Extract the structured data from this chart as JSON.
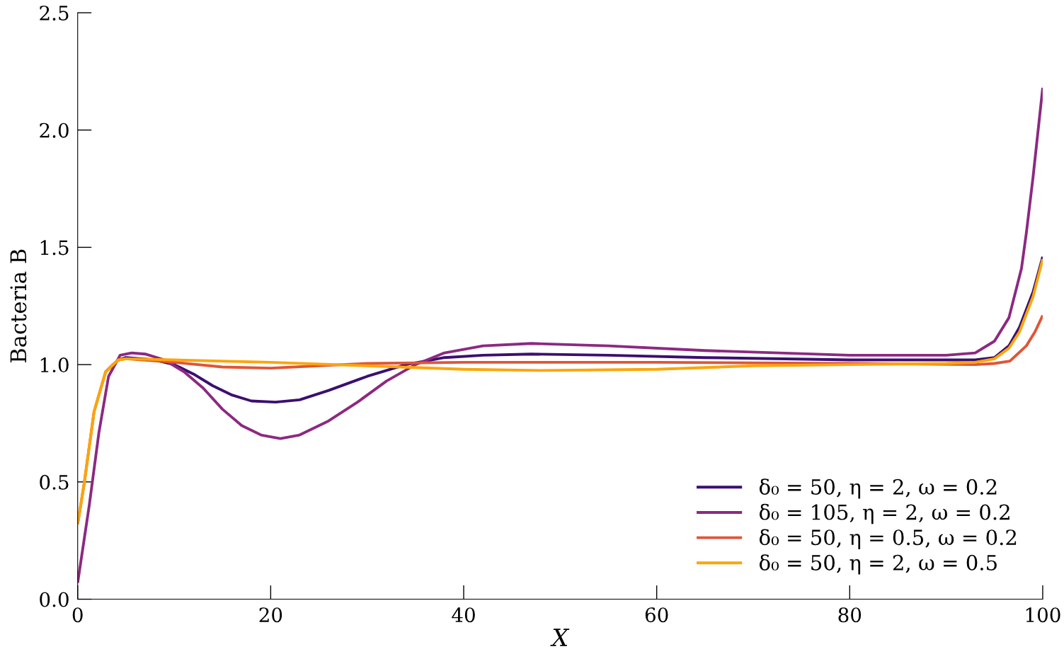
{
  "chart_data": {
    "type": "line",
    "xlabel": "X",
    "ylabel": "Bacteria B",
    "xlim": [
      0,
      100
    ],
    "ylim": [
      0,
      2.5
    ],
    "xticks": [
      0,
      20,
      40,
      60,
      80,
      100
    ],
    "yticks": [
      {
        "value": 0,
        "label": "0.0"
      },
      {
        "value": 0.5,
        "label": "0.5"
      },
      {
        "value": 1,
        "label": "1.0"
      },
      {
        "value": 1.5,
        "label": "1.5"
      },
      {
        "value": 2,
        "label": "2.0"
      },
      {
        "value": 2.5,
        "label": "2.5"
      }
    ],
    "grid": false,
    "legend": "bottom right",
    "marker": "none",
    "line_style": "solid",
    "series": [
      {
        "name": "δ₀ = 50, η = 2, ω = 0.2",
        "color": "#3b0f70",
        "x": [
          2.9,
          4.2,
          5,
          8,
          10,
          12,
          14,
          16,
          18,
          20.5,
          23,
          26,
          30,
          34,
          38,
          42,
          47,
          55,
          65,
          80,
          90,
          93,
          95,
          96.5,
          97.6,
          99,
          100
        ],
        "values": [
          0.97,
          1.02,
          1.03,
          1.02,
          1.0,
          0.96,
          0.91,
          0.87,
          0.845,
          0.84,
          0.85,
          0.89,
          0.95,
          1.0,
          1.03,
          1.04,
          1.045,
          1.04,
          1.03,
          1.02,
          1.02,
          1.02,
          1.03,
          1.08,
          1.16,
          1.31,
          1.46
        ]
      },
      {
        "name": "δ₀ = 105, η = 2, ω = 0.2",
        "color": "#8c2981",
        "x": [
          0,
          1.2,
          2.2,
          3.2,
          4.4,
          5.6,
          7,
          9,
          11,
          13,
          15,
          17,
          19,
          21,
          23,
          26,
          29,
          32,
          35,
          38,
          42,
          47,
          55,
          65,
          80,
          90,
          93,
          95,
          96.5,
          97.8,
          98.3,
          99,
          100
        ],
        "values": [
          0.07,
          0.4,
          0.71,
          0.95,
          1.04,
          1.05,
          1.045,
          1.02,
          0.97,
          0.9,
          0.81,
          0.74,
          0.7,
          0.685,
          0.7,
          0.76,
          0.84,
          0.93,
          1.0,
          1.05,
          1.08,
          1.09,
          1.08,
          1.06,
          1.04,
          1.04,
          1.05,
          1.1,
          1.2,
          1.41,
          1.56,
          1.8,
          2.18
        ]
      },
      {
        "name": "δ₀ = 50, η = 0.5, ω = 0.2",
        "color": "#e05536",
        "x": [
          0,
          0.7,
          1.7,
          2.9,
          4.2,
          5,
          10,
          15,
          20,
          25,
          30,
          40,
          60,
          80,
          93,
          95,
          96.6,
          98.3,
          99.2,
          100
        ],
        "values": [
          0.32,
          0.5,
          0.8,
          0.97,
          1.02,
          1.025,
          1.01,
          0.99,
          0.985,
          0.995,
          1.005,
          1.01,
          1.01,
          1.005,
          1.0,
          1.005,
          1.015,
          1.08,
          1.14,
          1.21
        ]
      },
      {
        "name": "δ₀ = 50, η = 2, ω = 0.5",
        "color": "#fca50a",
        "x": [
          0,
          0.7,
          1.7,
          2.9,
          4.2,
          5,
          10,
          20,
          30,
          40,
          48,
          60,
          70,
          80,
          90,
          93,
          95,
          96.5,
          97.6,
          99,
          100
        ],
        "values": [
          0.32,
          0.5,
          0.8,
          0.97,
          1.02,
          1.025,
          1.02,
          1.01,
          0.995,
          0.98,
          0.975,
          0.98,
          0.995,
          1.0,
          1.005,
          1.01,
          1.025,
          1.07,
          1.14,
          1.29,
          1.45
        ]
      }
    ]
  }
}
